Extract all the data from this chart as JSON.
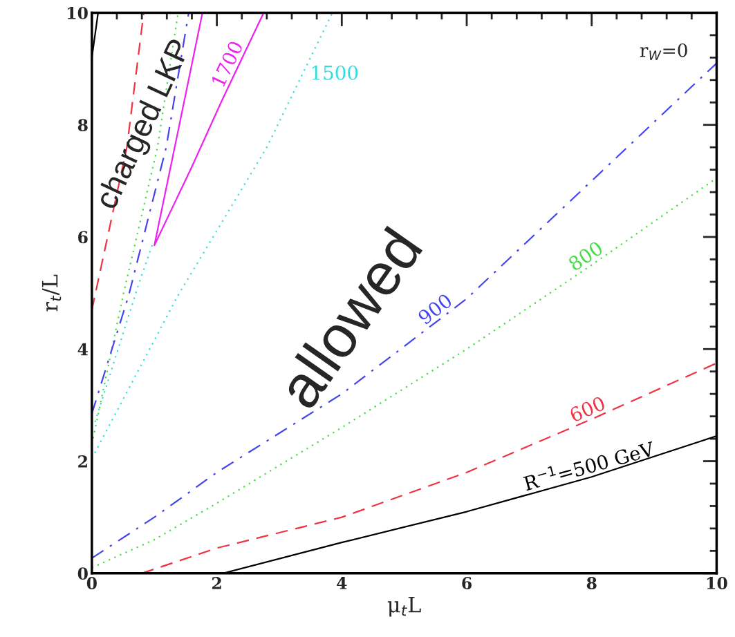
{
  "chart_data": {
    "type": "line",
    "xlabel": "μ$_{t}$L",
    "ylabel": "r$_{t}$/L",
    "xlim": [
      0,
      10
    ],
    "ylim": [
      0,
      10
    ],
    "xticks": [
      0,
      2,
      4,
      6,
      8,
      10
    ],
    "yticks": [
      0,
      2,
      4,
      6,
      8,
      10
    ],
    "grid": false,
    "legend": false,
    "series": [
      {
        "color": "#000000",
        "line_style": "solid",
        "x": [
          2.1,
          4,
          6,
          8,
          10
        ],
        "values": [
          0,
          0.55,
          1.1,
          1.72,
          2.45
        ]
      },
      {
        "color": "#000000",
        "line_style": "solid",
        "x": [
          0,
          0.1
        ],
        "values": [
          9.2,
          10
        ]
      },
      {
        "color": "#ee3344",
        "line_style": "dashed",
        "x": [
          0.8,
          2,
          4,
          6,
          8,
          10
        ],
        "values": [
          0,
          0.45,
          1.0,
          1.8,
          2.75,
          3.75
        ]
      },
      {
        "color": "#ee3344",
        "line_style": "dashed",
        "x": [
          0,
          0.56,
          0.83
        ],
        "values": [
          4.7,
          7.6,
          10
        ]
      },
      {
        "color": "#44dd44",
        "line_style": "dotted",
        "x": [
          0,
          1,
          2,
          4,
          6,
          8,
          10
        ],
        "values": [
          0.1,
          0.6,
          1.25,
          2.6,
          4.0,
          5.5,
          7.05
        ]
      },
      {
        "color": "#44dd44",
        "line_style": "dotted",
        "x": [
          0,
          0.5,
          1.05,
          1.38
        ],
        "values": [
          2.3,
          4.96,
          7.6,
          10
        ]
      },
      {
        "color": "#4444ee",
        "line_style": "dashdot",
        "x": [
          0,
          1,
          2,
          3,
          4,
          6,
          8,
          10
        ],
        "values": [
          0.27,
          1.0,
          1.8,
          2.5,
          3.2,
          4.9,
          7.0,
          9.1
        ]
      },
      {
        "color": "#4444ee",
        "line_style": "dashdot",
        "x": [
          0,
          0.59,
          1.19,
          1.55
        ],
        "values": [
          2.85,
          4.96,
          7.6,
          10
        ]
      },
      {
        "color": "#33dddd",
        "line_style": "dotted",
        "x": [
          0,
          1.38,
          2.8,
          3.85
        ],
        "values": [
          2.05,
          4.96,
          7.6,
          10
        ]
      },
      {
        "color": "#33dddd",
        "line_style": "dotted",
        "x": [
          0.05,
          0.75,
          0.98
        ],
        "values": [
          2.7,
          5.16,
          5.9
        ]
      },
      {
        "color": "#ee22ee",
        "line_style": "solid",
        "x": [
          1.77,
          1.4,
          1.0,
          1.6,
          2.08,
          2.75
        ],
        "values": [
          10,
          8.0,
          5.85,
          7.25,
          8.43,
          10
        ]
      }
    ],
    "annotations": [
      {
        "text": "R$^{−1}$=500 GeV",
        "x": 8.0,
        "y": 1.72
      },
      {
        "text": "600",
        "x": 8.0,
        "y": 2.75
      },
      {
        "text": "800",
        "x": 8.0,
        "y": 5.5
      },
      {
        "text": "900",
        "x": 5.6,
        "y": 4.56
      },
      {
        "text": "1500",
        "x": 3.36875,
        "y": 8.9
      },
      {
        "text": "1700",
        "x": 2.32,
        "y": 9.0
      },
      "r$_{W}$=0",
      "allowed",
      "charged LKP"
    ]
  }
}
